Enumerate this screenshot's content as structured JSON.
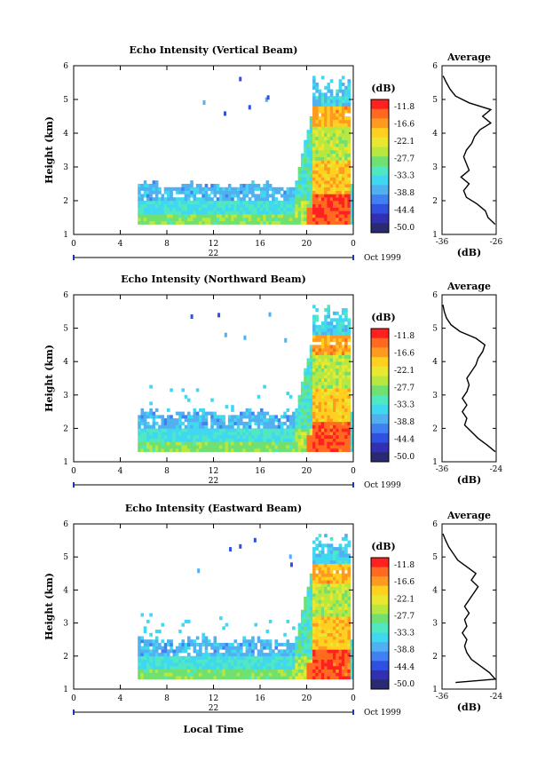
{
  "colorbar": {
    "unit_label": "(dB)",
    "tick_labels": [
      "-11.8",
      "-16.6",
      "-22.1",
      "-27.7",
      "-33.3",
      "-38.8",
      "-44.4",
      "-50.0"
    ],
    "colors": [
      "#ff2020",
      "#ff6a20",
      "#ff9a20",
      "#ffd020",
      "#e8e830",
      "#b8e840",
      "#70e070",
      "#50e8c0",
      "#40d8f0",
      "#50b0f0",
      "#4080f0",
      "#3050e0",
      "#3030b0",
      "#2a2a70"
    ]
  },
  "x_axis": {
    "tick_labels": [
      "0",
      "4",
      "8",
      "12",
      "16",
      "20",
      "0"
    ],
    "date_label": "22",
    "month_label": "Oct 1999",
    "title": "Local Time"
  },
  "chart_data": [
    {
      "type": "heatmap",
      "title": "Echo Intensity (Vertical Beam)",
      "ylabel": "Height (km)",
      "x_range_hours": [
        0,
        24
      ],
      "ylim": [
        1,
        6
      ],
      "y_ticks": [
        1,
        2,
        3,
        4,
        5,
        6
      ],
      "profile": {
        "title": "Average",
        "xlabel": "(dB)",
        "xlim": [
          -36,
          -26
        ],
        "x_tick_labels": [
          "-36",
          "-26"
        ],
        "height_km": [
          1.3,
          1.5,
          1.7,
          1.9,
          2.1,
          2.3,
          2.5,
          2.7,
          2.9,
          3.1,
          3.3,
          3.5,
          3.7,
          3.9,
          4.1,
          4.3,
          4.5,
          4.7,
          4.9,
          5.1,
          5.3,
          5.5,
          5.7
        ],
        "values_db": [
          -26.2,
          -27.5,
          -28.0,
          -29.5,
          -31.5,
          -32.0,
          -31.0,
          -32.5,
          -31.0,
          -31.5,
          -32.0,
          -31.5,
          -30.5,
          -30.0,
          -29.0,
          -27.0,
          -28.5,
          -27.0,
          -31.0,
          -33.5,
          -34.5,
          -35.2,
          -35.8
        ]
      }
    },
    {
      "type": "heatmap",
      "title": "Echo Intensity (Northward Beam)",
      "ylabel": "Height (km)",
      "x_range_hours": [
        0,
        24
      ],
      "ylim": [
        1,
        6
      ],
      "y_ticks": [
        1,
        2,
        3,
        4,
        5,
        6
      ],
      "profile": {
        "title": "Average",
        "xlabel": "(dB)",
        "xlim": [
          -36,
          -24
        ],
        "x_tick_labels": [
          "-36",
          "-24"
        ],
        "height_km": [
          1.3,
          1.5,
          1.7,
          1.9,
          2.1,
          2.3,
          2.5,
          2.7,
          2.9,
          3.1,
          3.3,
          3.5,
          3.7,
          3.9,
          4.1,
          4.3,
          4.5,
          4.7,
          4.9,
          5.1,
          5.3,
          5.5,
          5.7
        ],
        "values_db": [
          -24.2,
          -26.0,
          -28.0,
          -29.5,
          -31.0,
          -30.5,
          -31.5,
          -30.5,
          -31.5,
          -30.5,
          -30.0,
          -30.5,
          -29.5,
          -28.5,
          -28.0,
          -27.0,
          -26.5,
          -28.5,
          -32.0,
          -34.0,
          -35.0,
          -35.5,
          -35.8
        ]
      }
    },
    {
      "type": "heatmap",
      "title": "Echo Intensity (Eastward Beam)",
      "ylabel": "Height (km)",
      "x_range_hours": [
        0,
        24
      ],
      "ylim": [
        1,
        6
      ],
      "y_ticks": [
        1,
        2,
        3,
        4,
        5,
        6
      ],
      "profile": {
        "title": "Average",
        "xlabel": "(dB)",
        "xlim": [
          -36,
          -24
        ],
        "x_tick_labels": [
          "-36",
          "-24"
        ],
        "height_km": [
          1.2,
          1.3,
          1.5,
          1.7,
          1.9,
          2.1,
          2.3,
          2.5,
          2.7,
          2.9,
          3.1,
          3.3,
          3.5,
          3.7,
          3.9,
          4.1,
          4.3,
          4.5,
          4.7,
          4.9,
          5.1,
          5.3,
          5.5,
          5.7
        ],
        "values_db": [
          -33.0,
          -24.2,
          -25.5,
          -27.5,
          -29.5,
          -30.5,
          -31.0,
          -30.5,
          -31.5,
          -30.5,
          -31.0,
          -30.0,
          -31.0,
          -30.0,
          -29.0,
          -28.0,
          -29.5,
          -28.5,
          -30.5,
          -32.5,
          -33.5,
          -34.5,
          -35.2,
          -35.8
        ]
      }
    }
  ]
}
